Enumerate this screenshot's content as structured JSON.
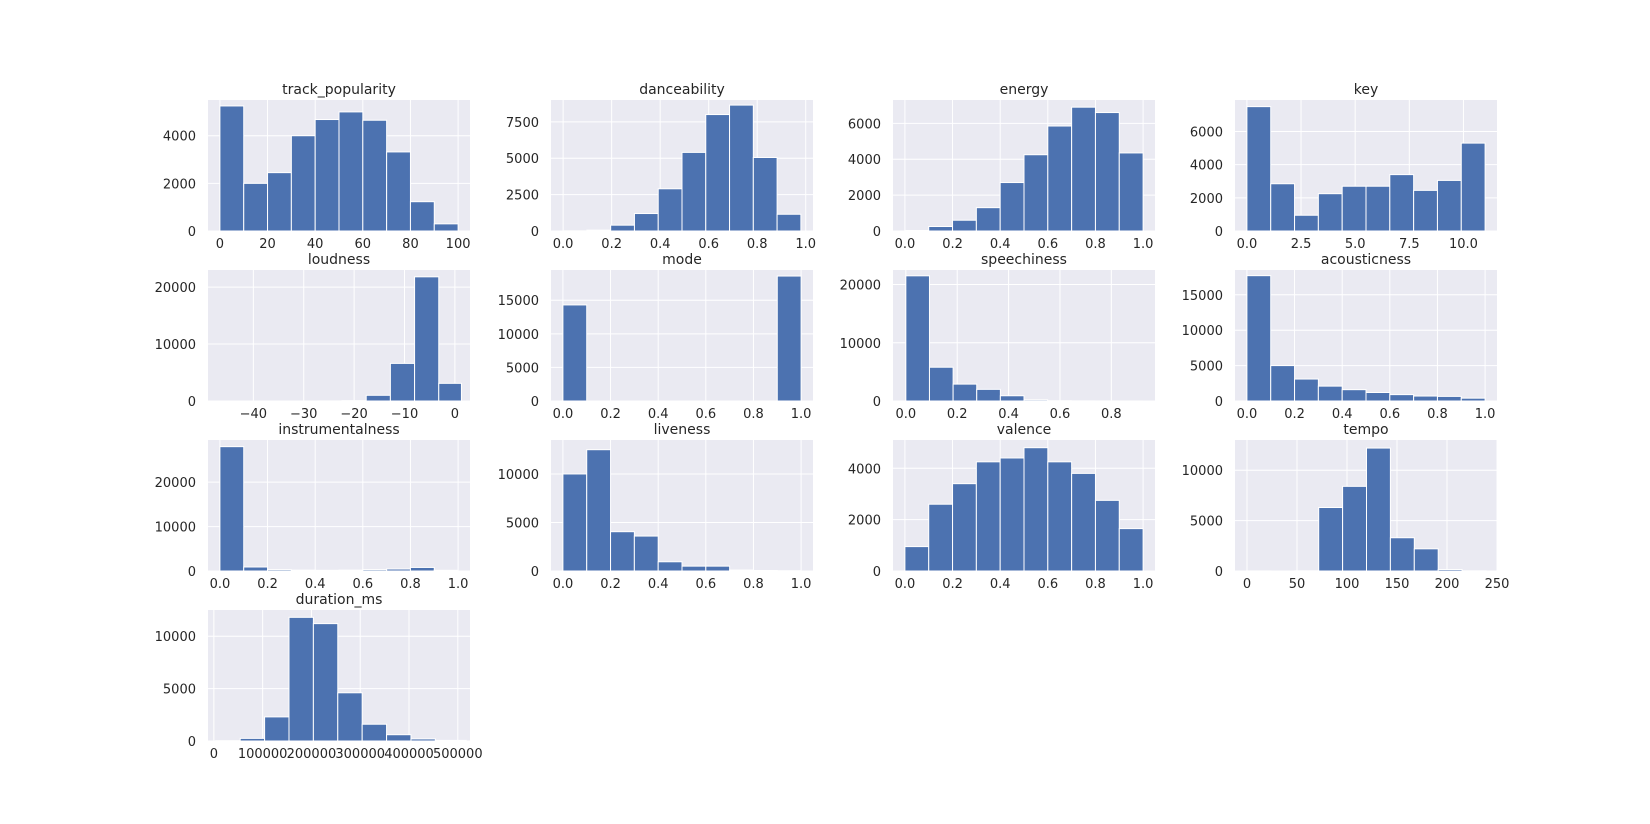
{
  "figure": {
    "background": "#ffffff",
    "panel_background": "#eaeaf2",
    "bar_color": "#4c72b0",
    "grid_color": "#ffffff"
  },
  "chart_data": [
    {
      "type": "bar",
      "title": "track_popularity",
      "xlim": [
        -5,
        105
      ],
      "ylim": [
        0,
        5500
      ],
      "xticks": [
        0,
        20,
        40,
        60,
        80,
        100
      ],
      "xtick_labels": [
        "0",
        "20",
        "40",
        "60",
        "80",
        "100"
      ],
      "yticks": [
        0,
        2000,
        4000
      ],
      "ytick_labels": [
        "0",
        "2000",
        "4000"
      ],
      "bins": [
        0,
        10,
        20,
        30,
        40,
        50,
        60,
        70,
        80,
        90,
        100
      ],
      "counts": [
        5250,
        2000,
        2450,
        4000,
        4680,
        5000,
        4650,
        3320,
        1230,
        300
      ],
      "grid": true,
      "legend": "none"
    },
    {
      "type": "bar",
      "title": "danceability",
      "xlim": [
        -0.05,
        1.03
      ],
      "ylim": [
        0,
        9000
      ],
      "xticks": [
        0.0,
        0.2,
        0.4,
        0.6,
        0.8,
        1.0
      ],
      "xtick_labels": [
        "0.0",
        "0.2",
        "0.4",
        "0.6",
        "0.8",
        "1.0"
      ],
      "yticks": [
        0,
        2500,
        5000,
        7500
      ],
      "ytick_labels": [
        "0",
        "2500",
        "5000",
        "7500"
      ],
      "bins": [
        0.0,
        0.098,
        0.196,
        0.294,
        0.392,
        0.49,
        0.588,
        0.686,
        0.784,
        0.882,
        0.98
      ],
      "counts": [
        10,
        60,
        400,
        1200,
        2900,
        5400,
        8000,
        8650,
        5050,
        1150
      ],
      "grid": true,
      "legend": "none"
    },
    {
      "type": "bar",
      "title": "energy",
      "xlim": [
        -0.05,
        1.05
      ],
      "ylim": [
        0,
        7300
      ],
      "xticks": [
        0.0,
        0.2,
        0.4,
        0.6,
        0.8,
        1.0
      ],
      "xtick_labels": [
        "0.0",
        "0.2",
        "0.4",
        "0.6",
        "0.8",
        "1.0"
      ],
      "yticks": [
        0,
        2000,
        4000,
        6000
      ],
      "ytick_labels": [
        "0",
        "2000",
        "4000",
        "6000"
      ],
      "bins": [
        0.0,
        0.1,
        0.2,
        0.3,
        0.4,
        0.5,
        0.6,
        0.7,
        0.8,
        0.9,
        1.0
      ],
      "counts": [
        30,
        250,
        600,
        1300,
        2700,
        4250,
        5850,
        6900,
        6600,
        4350
      ],
      "grid": true,
      "legend": "none"
    },
    {
      "type": "bar",
      "title": "key",
      "xlim": [
        -0.55,
        11.55
      ],
      "ylim": [
        0,
        7900
      ],
      "xticks": [
        0.0,
        2.5,
        5.0,
        7.5,
        10.0
      ],
      "xtick_labels": [
        "0.0",
        "2.5",
        "5.0",
        "7.5",
        "10.0"
      ],
      "yticks": [
        0,
        2000,
        4000,
        6000
      ],
      "ytick_labels": [
        "0",
        "2000",
        "4000",
        "6000"
      ],
      "bins": [
        0,
        1.1,
        2.2,
        3.3,
        4.4,
        5.5,
        6.6,
        7.7,
        8.8,
        9.9,
        11
      ],
      "counts": [
        7500,
        2850,
        950,
        2250,
        2700,
        2700,
        3400,
        2450,
        3050,
        5300
      ],
      "grid": true,
      "legend": "none"
    },
    {
      "type": "bar",
      "title": "loudness",
      "xlim": [
        -49,
        3
      ],
      "ylim": [
        0,
        23000
      ],
      "xticks": [
        -40,
        -30,
        -20,
        -10,
        0
      ],
      "xtick_labels": [
        "−40",
        "−30",
        "−20",
        "−10",
        "0"
      ],
      "yticks": [
        0,
        10000,
        20000
      ],
      "ytick_labels": [
        "0",
        "10000",
        "20000"
      ],
      "bins": [
        -46.4,
        -41.6,
        -36.8,
        -32.0,
        -27.2,
        -22.4,
        -17.6,
        -12.8,
        -8.0,
        -3.2,
        1.3
      ],
      "counts": [
        0,
        0,
        0,
        0,
        10,
        60,
        1000,
        6600,
        21800,
        3100
      ],
      "grid": true,
      "legend": "none"
    },
    {
      "type": "bar",
      "title": "mode",
      "xlim": [
        -0.05,
        1.05
      ],
      "ylim": [
        0,
        19500
      ],
      "xticks": [
        0.0,
        0.2,
        0.4,
        0.6,
        0.8,
        1.0
      ],
      "xtick_labels": [
        "0.0",
        "0.2",
        "0.4",
        "0.6",
        "0.8",
        "1.0"
      ],
      "yticks": [
        0,
        5000,
        10000,
        15000
      ],
      "ytick_labels": [
        "0",
        "5000",
        "10000",
        "15000"
      ],
      "bins": [
        0.0,
        0.1,
        0.2,
        0.3,
        0.4,
        0.5,
        0.6,
        0.7,
        0.8,
        0.9,
        1.0
      ],
      "counts": [
        14300,
        0,
        0,
        0,
        0,
        0,
        0,
        0,
        0,
        18600
      ],
      "grid": true,
      "legend": "none"
    },
    {
      "type": "bar",
      "title": "speechiness",
      "xlim": [
        -0.05,
        0.97
      ],
      "ylim": [
        0,
        22500
      ],
      "xticks": [
        0.0,
        0.2,
        0.4,
        0.6,
        0.8
      ],
      "xtick_labels": [
        "0.0",
        "0.2",
        "0.4",
        "0.6",
        "0.8"
      ],
      "yticks": [
        0,
        10000,
        20000
      ],
      "ytick_labels": [
        "0",
        "10000",
        "20000"
      ],
      "bins": [
        0.0,
        0.092,
        0.184,
        0.276,
        0.368,
        0.46,
        0.552,
        0.644,
        0.736,
        0.828,
        0.92
      ],
      "counts": [
        21500,
        5800,
        2900,
        2000,
        900,
        200,
        50,
        20,
        10,
        5
      ],
      "grid": true,
      "legend": "none"
    },
    {
      "type": "bar",
      "title": "acousticness",
      "xlim": [
        -0.05,
        1.05
      ],
      "ylim": [
        0,
        18500
      ],
      "xticks": [
        0.0,
        0.2,
        0.4,
        0.6,
        0.8,
        1.0
      ],
      "xtick_labels": [
        "0.0",
        "0.2",
        "0.4",
        "0.6",
        "0.8",
        "1.0"
      ],
      "yticks": [
        0,
        5000,
        10000,
        15000
      ],
      "ytick_labels": [
        "0",
        "5000",
        "10000",
        "15000"
      ],
      "bins": [
        0.0,
        0.1,
        0.2,
        0.3,
        0.4,
        0.5,
        0.6,
        0.7,
        0.8,
        0.9,
        1.0
      ],
      "counts": [
        17700,
        5000,
        3100,
        2100,
        1600,
        1200,
        900,
        700,
        650,
        400
      ],
      "grid": true,
      "legend": "none"
    },
    {
      "type": "bar",
      "title": "instrumentalness",
      "xlim": [
        -0.05,
        1.05
      ],
      "ylim": [
        0,
        29500
      ],
      "xticks": [
        0.0,
        0.2,
        0.4,
        0.6,
        0.8,
        1.0
      ],
      "xtick_labels": [
        "0.0",
        "0.2",
        "0.4",
        "0.6",
        "0.8",
        "1.0"
      ],
      "yticks": [
        0,
        10000,
        20000
      ],
      "ytick_labels": [
        "0",
        "10000",
        "20000"
      ],
      "bins": [
        0.0,
        0.1,
        0.2,
        0.3,
        0.4,
        0.5,
        0.6,
        0.7,
        0.8,
        0.9,
        1.0
      ],
      "counts": [
        28000,
        900,
        300,
        200,
        150,
        200,
        300,
        450,
        800,
        150
      ],
      "grid": true,
      "legend": "none"
    },
    {
      "type": "bar",
      "title": "liveness",
      "xlim": [
        -0.05,
        1.05
      ],
      "ylim": [
        0,
        13500
      ],
      "xticks": [
        0.0,
        0.2,
        0.4,
        0.6,
        0.8,
        1.0
      ],
      "xtick_labels": [
        "0.0",
        "0.2",
        "0.4",
        "0.6",
        "0.8",
        "1.0"
      ],
      "yticks": [
        0,
        5000,
        10000
      ],
      "ytick_labels": [
        "0",
        "5000",
        "10000"
      ],
      "bins": [
        0.0,
        0.1,
        0.2,
        0.3,
        0.4,
        0.5,
        0.6,
        0.7,
        0.8,
        0.9,
        1.0
      ],
      "counts": [
        10000,
        12500,
        4050,
        3600,
        950,
        500,
        500,
        100,
        50,
        30
      ],
      "grid": true,
      "legend": "none"
    },
    {
      "type": "bar",
      "title": "valence",
      "xlim": [
        -0.05,
        1.05
      ],
      "ylim": [
        0,
        5100
      ],
      "xticks": [
        0.0,
        0.2,
        0.4,
        0.6,
        0.8,
        1.0
      ],
      "xtick_labels": [
        "0.0",
        "0.2",
        "0.4",
        "0.6",
        "0.8",
        "1.0"
      ],
      "yticks": [
        0,
        2000,
        4000
      ],
      "ytick_labels": [
        "0",
        "2000",
        "4000"
      ],
      "bins": [
        0.0,
        0.1,
        0.2,
        0.3,
        0.4,
        0.5,
        0.6,
        0.7,
        0.8,
        0.9,
        1.0
      ],
      "counts": [
        950,
        2600,
        3400,
        4250,
        4400,
        4800,
        4250,
        3800,
        2750,
        1650
      ],
      "grid": true,
      "legend": "none"
    },
    {
      "type": "bar",
      "title": "tempo",
      "xlim": [
        -12,
        250
      ],
      "ylim": [
        0,
        13000
      ],
      "xticks": [
        0,
        50,
        100,
        150,
        200,
        250
      ],
      "xtick_labels": [
        "0",
        "50",
        "100",
        "150",
        "200",
        "250"
      ],
      "yticks": [
        0,
        5000,
        10000
      ],
      "ytick_labels": [
        "0",
        "5000",
        "10000"
      ],
      "bins": [
        0.0,
        23.9,
        47.8,
        71.7,
        95.6,
        119.5,
        143.4,
        167.3,
        191.2,
        215.1,
        239.0
      ],
      "counts": [
        5,
        0,
        20,
        6300,
        8400,
        12200,
        3300,
        2200,
        150,
        20
      ],
      "grid": true,
      "legend": "none"
    },
    {
      "type": "bar",
      "title": "duration_ms",
      "xlim": [
        -12000,
        525000
      ],
      "ylim": [
        0,
        12500
      ],
      "xticks": [
        0,
        100000,
        200000,
        300000,
        400000,
        500000
      ],
      "xtick_labels": [
        "0",
        "100000",
        "200000",
        "300000",
        "400000",
        "500000"
      ],
      "yticks": [
        0,
        5000,
        10000
      ],
      "ytick_labels": [
        "0",
        "5000",
        "10000"
      ],
      "bins": [
        4000,
        54000,
        104000,
        154000,
        204000,
        254000,
        304000,
        354000,
        404000,
        454000,
        517000
      ],
      "counts": [
        30,
        250,
        2300,
        11800,
        11200,
        4600,
        1600,
        600,
        200,
        60
      ],
      "grid": true,
      "legend": "none"
    }
  ]
}
